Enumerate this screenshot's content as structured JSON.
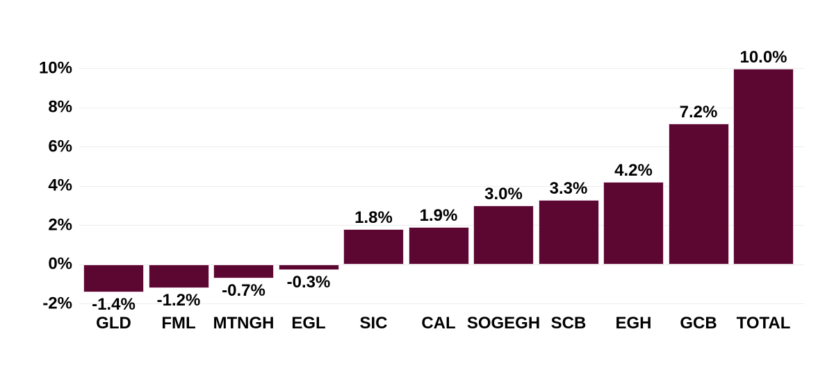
{
  "chart_data": {
    "type": "bar",
    "categories": [
      "GLD",
      "FML",
      "MTNGH",
      "EGL",
      "SIC",
      "CAL",
      "SOGEGH",
      "SCB",
      "EGH",
      "GCB",
      "TOTAL"
    ],
    "values": [
      -1.4,
      -1.2,
      -0.7,
      -0.3,
      1.8,
      1.9,
      3.0,
      3.3,
      4.2,
      7.2,
      10.0
    ],
    "value_labels": [
      "-1.4%",
      "-1.2%",
      "-0.7%",
      "-0.3%",
      "1.8%",
      "1.9%",
      "3.0%",
      "3.3%",
      "4.2%",
      "7.2%",
      "10.0%"
    ],
    "title": "",
    "xlabel": "",
    "ylabel": "",
    "ylim": [
      -2,
      10
    ],
    "yticks": [
      10,
      8,
      6,
      4,
      2,
      0,
      -2
    ],
    "ytick_labels": [
      "10%",
      "8%",
      "6%",
      "4%",
      "2%",
      "0%",
      "-2%"
    ],
    "grid": true,
    "legend_position": "none",
    "colors": {
      "bar_fill": "#5C0632",
      "bar_stroke": "#E9D6E0",
      "gridline": "#ECECEC",
      "text": "#000000",
      "background": "#FFFFFF"
    }
  }
}
